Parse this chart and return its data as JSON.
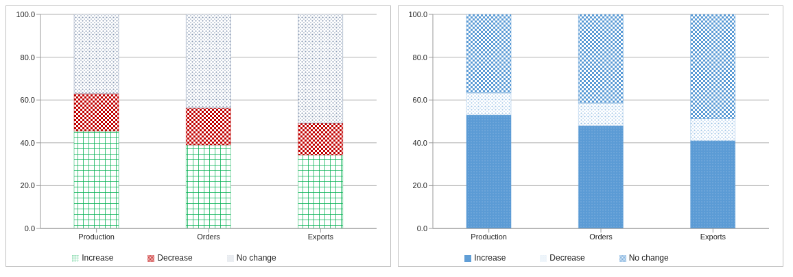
{
  "chart_data": [
    {
      "type": "bar",
      "stacked": true,
      "categories": [
        "Production",
        "Orders",
        "Exports"
      ],
      "series": [
        {
          "name": "Increase",
          "color": "#00b050",
          "values": [
            45.5,
            39.0,
            34.3
          ]
        },
        {
          "name": "Decrease",
          "color": "#c00000",
          "values": [
            17.5,
            17.3,
            14.9
          ]
        },
        {
          "name": "No change",
          "color": "#8496b0",
          "values": [
            37.0,
            43.7,
            50.8
          ]
        }
      ],
      "ylim": [
        0,
        100
      ],
      "yticks": [
        {
          "value": 0,
          "label": "0.0"
        },
        {
          "value": 20,
          "label": "20.0"
        },
        {
          "value": 40,
          "label": "40.0"
        },
        {
          "value": 60,
          "label": "60.0"
        },
        {
          "value": 80,
          "label": "80.0"
        },
        {
          "value": 100,
          "label": "100.0"
        }
      ],
      "grid": "y",
      "legend": "bottom"
    },
    {
      "type": "bar",
      "stacked": true,
      "categories": [
        "Production",
        "Orders",
        "Exports"
      ],
      "series": [
        {
          "name": "Increase",
          "color": "#5b9bd5",
          "values": [
            53.0,
            48.0,
            41.0
          ]
        },
        {
          "name": "Decrease",
          "color": "#9dc3e6",
          "values": [
            10.3,
            10.5,
            10.3
          ]
        },
        {
          "name": "No change",
          "color": "#5b9bd5",
          "values": [
            36.7,
            41.5,
            48.7
          ]
        }
      ],
      "ylim": [
        0,
        100
      ],
      "yticks": [
        {
          "value": 0,
          "label": "0.0"
        },
        {
          "value": 20,
          "label": "20.0"
        },
        {
          "value": 40,
          "label": "40.0"
        },
        {
          "value": 60,
          "label": "60.0"
        },
        {
          "value": 80,
          "label": "80.0"
        },
        {
          "value": 100,
          "label": "100.0"
        }
      ],
      "grid": "y",
      "legend": "bottom"
    }
  ]
}
